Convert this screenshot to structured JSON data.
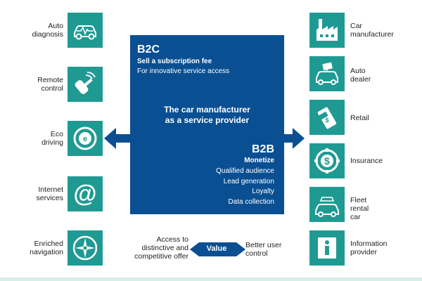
{
  "left_services": [
    {
      "label": "Auto\ndiagnosis",
      "icon": "car-pulse-icon"
    },
    {
      "label": "Remote\ncontrol",
      "icon": "remote-key-icon"
    },
    {
      "label": "Eco\ndriving",
      "icon": "eco-gauge-icon"
    },
    {
      "label": "Internet\nservices",
      "icon": "at-sign-icon"
    },
    {
      "label": "Enriched\nnavigation",
      "icon": "compass-icon"
    }
  ],
  "right_partners": [
    {
      "label": "Car\nmanufacturer",
      "icon": "factory-icon"
    },
    {
      "label": "Auto\ndealer",
      "icon": "car-dealer-icon"
    },
    {
      "label": "Retail",
      "icon": "card-swipe-icon"
    },
    {
      "label": "Insurance",
      "icon": "insurance-shield-icon"
    },
    {
      "label": "Fleet\nrental\ncar",
      "icon": "fleet-cars-icon"
    },
    {
      "label": "Information\nprovider",
      "icon": "info-icon"
    }
  ],
  "center": {
    "b2c_title": "B2C",
    "b2c_line1": "Sell a subscription fee",
    "b2c_line2": "For innovative service access",
    "title": "The car manufacturer\nas a service provider",
    "b2b_title": "B2B",
    "b2b_subtitle": "Monetize",
    "b2b_items": "Qualified audience\nLead generation\nLoyalty\nData collection"
  },
  "value": {
    "label": "Value",
    "left_text": "Access to\ndistinctive and\ncompetitive offer",
    "right_text": "Better user\ncontrol"
  },
  "colors": {
    "tile": "#1f9a93",
    "center_box": "#0a4f92",
    "arrow": "#0a4f92"
  }
}
